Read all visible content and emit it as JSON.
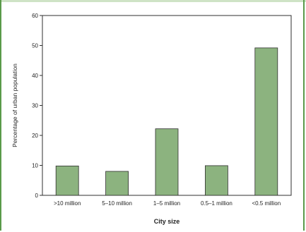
{
  "chart_data": {
    "type": "bar",
    "title": "",
    "xlabel": "City size",
    "ylabel": "Percentage of urban population",
    "categories": [
      ">10 million",
      "5–10 million",
      "1–5 million",
      "0.5–1 million",
      "<0.5 million"
    ],
    "values": [
      9.8,
      8.0,
      22.2,
      9.9,
      49.2
    ],
    "ylim": [
      0,
      60
    ],
    "yticks": [
      0,
      10,
      20,
      30,
      40,
      50,
      60
    ],
    "grid": false,
    "legend": "none",
    "colors": {
      "bar": "#8cb37f",
      "bar_edge": "#2f2f2f",
      "frame": "#5a9a4a"
    }
  }
}
